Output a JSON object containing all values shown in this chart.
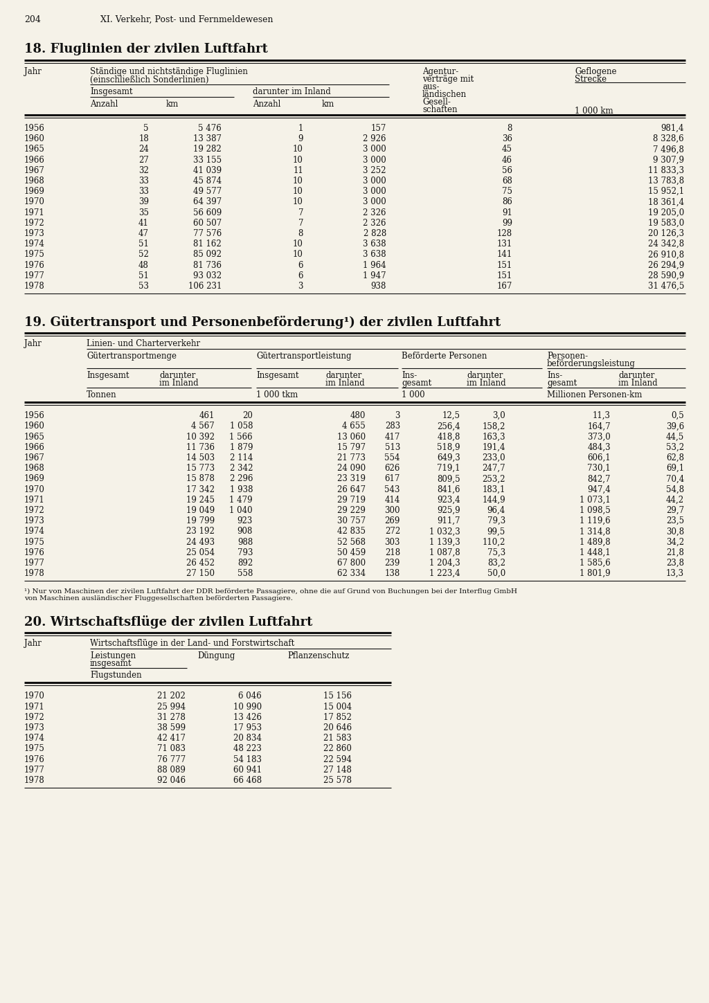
{
  "page_num": "204",
  "chapter": "XI. Verkehr, Post- und Fernmeldewesen",
  "bg_color": "#f5f2e8",
  "table18_title": "18. Fluglinien der zivilen Luftfahrt",
  "table18_data": [
    [
      "1956",
      "5",
      "5 476",
      "1",
      "157",
      "8",
      "981,4"
    ],
    [
      "1960",
      "18",
      "13 387",
      "9",
      "2 926",
      "36",
      "8 328,6"
    ],
    [
      "1965",
      "24",
      "19 282",
      "10",
      "3 000",
      "45",
      "7 496,8"
    ],
    [
      "1966",
      "27",
      "33 155",
      "10",
      "3 000",
      "46",
      "9 307,9"
    ],
    [
      "1967",
      "32",
      "41 039",
      "11",
      "3 252",
      "56",
      "11 833,3"
    ],
    [
      "1968",
      "33",
      "45 874",
      "10",
      "3 000",
      "68",
      "13 783,8"
    ],
    [
      "1969",
      "33",
      "49 577",
      "10",
      "3 000",
      "75",
      "15 952,1"
    ],
    [
      "1970",
      "39",
      "64 397",
      "10",
      "3 000",
      "86",
      "18 361,4"
    ],
    [
      "1971",
      "35",
      "56 609",
      "7",
      "2 326",
      "91",
      "19 205,0"
    ],
    [
      "1972",
      "41",
      "60 507",
      "7",
      "2 326",
      "99",
      "19 583,0"
    ],
    [
      "1973",
      "47",
      "77 576",
      "8",
      "2 828",
      "128",
      "20 126,3"
    ],
    [
      "1974",
      "51",
      "81 162",
      "10",
      "3 638",
      "131",
      "24 342,8"
    ],
    [
      "1975",
      "52",
      "85 092",
      "10",
      "3 638",
      "141",
      "26 910,8"
    ],
    [
      "1976",
      "48",
      "81 736",
      "6",
      "1 964",
      "151",
      "26 294,9"
    ],
    [
      "1977",
      "51",
      "93 032",
      "6",
      "1 947",
      "151",
      "28 590,9"
    ],
    [
      "1978",
      "53",
      "106 231",
      "3",
      "938",
      "167",
      "31 476,5"
    ]
  ],
  "table19_title": "19. Gütertransport und Personenbeförderung¹) der zivilen Luftfahrt",
  "table19_data": [
    [
      "1956",
      "461",
      "20",
      "480",
      "3",
      "12,5",
      "3,0",
      "11,3",
      "0,5"
    ],
    [
      "1960",
      "4 567",
      "1 058",
      "4 655",
      "283",
      "256,4",
      "158,2",
      "164,7",
      "39,6"
    ],
    [
      "1965",
      "10 392",
      "1 566",
      "13 060",
      "417",
      "418,8",
      "163,3",
      "373,0",
      "44,5"
    ],
    [
      "1966",
      "11 736",
      "1 879",
      "15 797",
      "513",
      "518,9",
      "191,4",
      "484,3",
      "53,2"
    ],
    [
      "1967",
      "14 503",
      "2 114",
      "21 773",
      "554",
      "649,3",
      "233,0",
      "606,1",
      "62,8"
    ],
    [
      "1968",
      "15 773",
      "2 342",
      "24 090",
      "626",
      "719,1",
      "247,7",
      "730,1",
      "69,1"
    ],
    [
      "1969",
      "15 878",
      "2 296",
      "23 319",
      "617",
      "809,5",
      "253,2",
      "842,7",
      "70,4"
    ],
    [
      "1970",
      "17 342",
      "1 938",
      "26 647",
      "543",
      "841,6",
      "183,1",
      "947,4",
      "54,8"
    ],
    [
      "1971",
      "19 245",
      "1 479",
      "29 719",
      "414",
      "923,4",
      "144,9",
      "1 073,1",
      "44,2"
    ],
    [
      "1972",
      "19 049",
      "1 040",
      "29 229",
      "300",
      "925,9",
      "96,4",
      "1 098,5",
      "29,7"
    ],
    [
      "1973",
      "19 799",
      "923",
      "30 757",
      "269",
      "911,7",
      "79,3",
      "1 119,6",
      "23,5"
    ],
    [
      "1974",
      "23 192",
      "908",
      "42 835",
      "272",
      "1 032,3",
      "99,5",
      "1 314,8",
      "30,8"
    ],
    [
      "1975",
      "24 493",
      "988",
      "52 568",
      "303",
      "1 139,3",
      "110,2",
      "1 489,8",
      "34,2"
    ],
    [
      "1976",
      "25 054",
      "793",
      "50 459",
      "218",
      "1 087,8",
      "75,3",
      "1 448,1",
      "21,8"
    ],
    [
      "1977",
      "26 452",
      "892",
      "67 800",
      "239",
      "1 204,3",
      "83,2",
      "1 585,6",
      "23,8"
    ],
    [
      "1978",
      "27 150",
      "558",
      "62 334",
      "138",
      "1 223,4",
      "50,0",
      "1 801,9",
      "13,3"
    ]
  ],
  "table19_footnote1": "¹) Nur von Maschinen der zivilen Luftfahrt der DDR beförderte Passagiere, ohne die auf Grund von Buchungen bei der Interflug GmbH",
  "table19_footnote2": "von Maschinen ausländischer Fluggesellschaften beförderten Passagiere.",
  "table20_title": "20. Wirtschaftsflüge der zivilen Luftfahrt",
  "table20_data": [
    [
      "1970",
      "21 202",
      "6 046",
      "15 156"
    ],
    [
      "1971",
      "25 994",
      "10 990",
      "15 004"
    ],
    [
      "1972",
      "31 278",
      "13 426",
      "17 852"
    ],
    [
      "1973",
      "38 599",
      "17 953",
      "20 646"
    ],
    [
      "1974",
      "42 417",
      "20 834",
      "21 583"
    ],
    [
      "1975",
      "71 083",
      "48 223",
      "22 860"
    ],
    [
      "1976",
      "76 777",
      "54 183",
      "22 594"
    ],
    [
      "1977",
      "88 089",
      "60 941",
      "27 148"
    ],
    [
      "1978",
      "92 046",
      "66 468",
      "25 578"
    ]
  ]
}
